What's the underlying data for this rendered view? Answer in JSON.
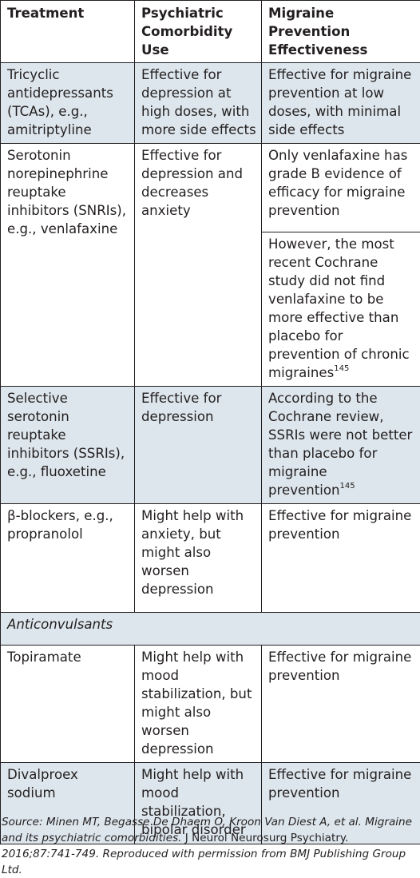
{
  "table": {
    "headers": [
      "Treatment",
      "Psychiatric Comorbidity Use",
      "Migraine Prevention Effectiveness"
    ],
    "rows": {
      "tca": {
        "treatment": "Tricyclic antidepressants (TCAs), e.g., amitriptyline",
        "psych": "Effective for depression at high doses, with more side effects",
        "migraine": "Effective for migraine prevention at low doses, with minimal side effects"
      },
      "snri": {
        "treatment": "Serotonin norepinephrine reuptake inhibitors (SNRIs), e.g., venlafaxine",
        "psych": "Effective for depression and decreases anxiety",
        "migraine": "Only venlafaxine has grade B evidence of efficacy for migraine prevention",
        "migraine_2": "However, the most recent Cochrane study did not find venlafaxine to be more effective than placebo for prevention of chronic migraines",
        "migraine_2_ref": "145"
      },
      "ssri": {
        "treatment": "Selective serotonin reuptake inhibitors (SSRIs), e.g., fluoxetine",
        "psych": "Effective for depression",
        "migraine": "According to the Cochrane review, SSRIs were not better than placebo for migraine prevention",
        "migraine_ref": "145"
      },
      "beta": {
        "treatment": "β-blockers, e.g., propranolol",
        "psych": "Might help with anxiety, but might also worsen depression",
        "migraine": "Effective for migraine prevention"
      },
      "anticonvulsants": {
        "label": "Anticonvulsants"
      },
      "topiramate": {
        "treatment": "Topiramate",
        "psych": "Might help with mood stabilization, but might also worsen depression",
        "migraine": "Effective for migraine prevention"
      },
      "divalproex": {
        "treatment": "Divalproex sodium",
        "psych": "Might help with mood stabilization, bipolar disorder",
        "migraine": "Effective for migraine prevention"
      }
    }
  },
  "source": {
    "prefix": "Source: Minen MT, Begasse De Dhaem O, Kroon Van Diest A, et al. Migraine and its psychiatric comorbidities. ",
    "journal": "J Neurol Neurosurg Psychiatry.",
    "suffix": " 2016;87:741-749. Reproduced with permission from BMJ Publishing Group Ltd."
  },
  "colors": {
    "shaded_row": "#dde6ec",
    "border": "#231f20"
  }
}
